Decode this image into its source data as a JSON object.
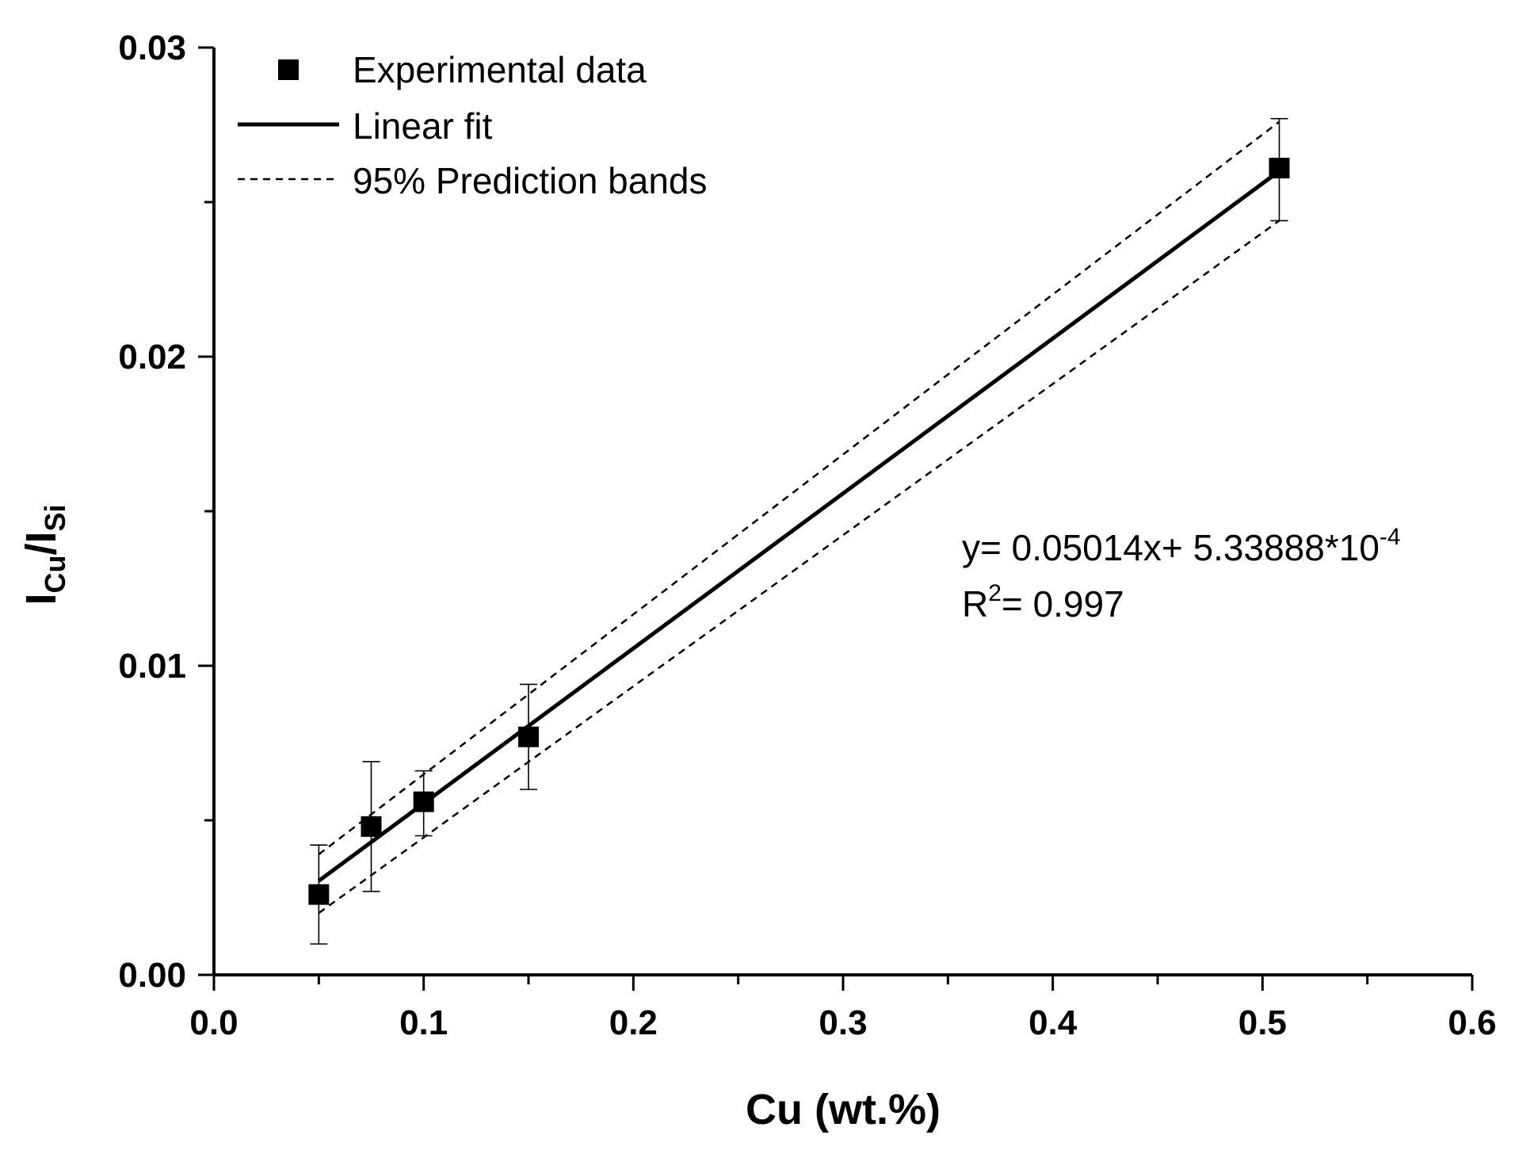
{
  "chart_data": {
    "type": "scatter",
    "xlabel": "Cu (wt.%)",
    "ylabel": {
      "main": "I",
      "sub1": "Cu",
      "sep": "/I",
      "sub2": "Si"
    },
    "xlim": [
      0.0,
      0.6
    ],
    "ylim": [
      0.0,
      0.03
    ],
    "x_ticks": [
      0.0,
      0.1,
      0.2,
      0.3,
      0.4,
      0.5,
      0.6
    ],
    "x_tick_labels": [
      "0.0",
      "0.1",
      "0.2",
      "0.3",
      "0.4",
      "0.5",
      "0.6"
    ],
    "y_ticks": [
      0.0,
      0.01,
      0.02,
      0.03
    ],
    "y_tick_labels": [
      "0.00",
      "0.01",
      "0.02",
      "0.03"
    ],
    "grid": false,
    "series": [
      {
        "name": "Experimental data",
        "kind": "scatter",
        "marker": "square",
        "x": [
          0.05,
          0.075,
          0.1,
          0.15,
          0.508
        ],
        "y": [
          0.0026,
          0.0048,
          0.0056,
          0.0077,
          0.0261
        ],
        "yerr_low": [
          0.001,
          0.0027,
          0.0045,
          0.006,
          0.0244
        ],
        "yerr_high": [
          0.0042,
          0.0069,
          0.0066,
          0.0094,
          0.0277
        ]
      },
      {
        "name": "Linear fit",
        "kind": "line",
        "style": "solid",
        "x": [
          0.05,
          0.508
        ],
        "slope": 0.05014,
        "intercept": 0.000533888
      },
      {
        "name": "95% Prediction bands",
        "kind": "line",
        "style": "dashed",
        "upper": {
          "x": [
            0.05,
            0.508
          ],
          "y": [
            0.0039,
            0.0276
          ]
        },
        "lower": {
          "x": [
            0.05,
            0.508
          ],
          "y": [
            0.002,
            0.0244
          ]
        }
      }
    ],
    "legend": {
      "position": "top-left",
      "entries": [
        "Experimental data",
        "Linear fit",
        "95% Prediction bands"
      ]
    },
    "annotation": {
      "eq_prefix": "y= 0.05014x+ 5.33888*10",
      "eq_exp": "-4",
      "r2_prefix": "R",
      "r2_exp": "2",
      "r2_value": "= 0.997"
    }
  }
}
